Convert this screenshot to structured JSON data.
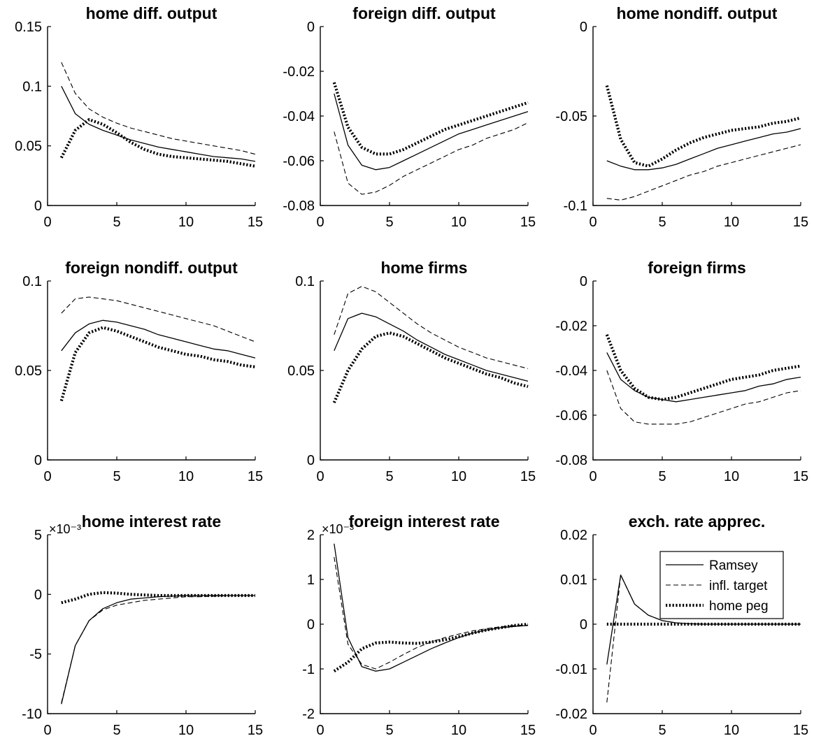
{
  "chart_data": [
    {
      "type": "line",
      "title": "home diff. output",
      "x": [
        1,
        2,
        3,
        4,
        5,
        6,
        7,
        8,
        9,
        10,
        11,
        12,
        13,
        14,
        15
      ],
      "xlim": [
        0,
        15
      ],
      "xticks": [
        0,
        5,
        10,
        15
      ],
      "xtick_labels": [
        "0",
        "5",
        "10",
        "15"
      ],
      "ylim": [
        0,
        0.15
      ],
      "yticks": [
        0,
        0.05,
        0.1,
        0.15
      ],
      "ytick_labels": [
        "0",
        "0.05",
        "0.1",
        "0.15"
      ],
      "series": [
        {
          "name": "Ramsey",
          "style": "solid",
          "values": [
            0.1,
            0.077,
            0.068,
            0.063,
            0.059,
            0.055,
            0.052,
            0.049,
            0.047,
            0.045,
            0.043,
            0.041,
            0.04,
            0.039,
            0.037
          ]
        },
        {
          "name": "infl. target",
          "style": "dashed",
          "values": [
            0.12,
            0.094,
            0.081,
            0.074,
            0.069,
            0.065,
            0.062,
            0.059,
            0.056,
            0.054,
            0.052,
            0.05,
            0.048,
            0.046,
            0.043
          ]
        },
        {
          "name": "home peg",
          "style": "dotted",
          "values": [
            0.04,
            0.063,
            0.072,
            0.068,
            0.061,
            0.053,
            0.047,
            0.043,
            0.041,
            0.04,
            0.039,
            0.038,
            0.037,
            0.035,
            0.033
          ]
        }
      ]
    },
    {
      "type": "line",
      "title": "foreign diff. output",
      "x": [
        1,
        2,
        3,
        4,
        5,
        6,
        7,
        8,
        9,
        10,
        11,
        12,
        13,
        14,
        15
      ],
      "xlim": [
        0,
        15
      ],
      "xticks": [
        0,
        5,
        10,
        15
      ],
      "xtick_labels": [
        "0",
        "5",
        "10",
        "15"
      ],
      "ylim": [
        -0.08,
        0
      ],
      "yticks": [
        -0.08,
        -0.06,
        -0.04,
        -0.02,
        0
      ],
      "ytick_labels": [
        "-0.08",
        "-0.06",
        "-0.04",
        "-0.02",
        "0"
      ],
      "series": [
        {
          "name": "Ramsey",
          "style": "solid",
          "values": [
            -0.03,
            -0.053,
            -0.062,
            -0.064,
            -0.063,
            -0.06,
            -0.057,
            -0.054,
            -0.051,
            -0.048,
            -0.046,
            -0.044,
            -0.042,
            -0.04,
            -0.038
          ]
        },
        {
          "name": "infl. target",
          "style": "dashed",
          "values": [
            -0.047,
            -0.07,
            -0.075,
            -0.074,
            -0.071,
            -0.067,
            -0.064,
            -0.061,
            -0.058,
            -0.055,
            -0.053,
            -0.05,
            -0.048,
            -0.046,
            -0.043
          ]
        },
        {
          "name": "home peg",
          "style": "dotted",
          "values": [
            -0.025,
            -0.045,
            -0.054,
            -0.057,
            -0.057,
            -0.055,
            -0.052,
            -0.049,
            -0.046,
            -0.044,
            -0.042,
            -0.04,
            -0.038,
            -0.036,
            -0.034
          ]
        }
      ]
    },
    {
      "type": "line",
      "title": "home nondiff. output",
      "x": [
        1,
        2,
        3,
        4,
        5,
        6,
        7,
        8,
        9,
        10,
        11,
        12,
        13,
        14,
        15
      ],
      "xlim": [
        0,
        15
      ],
      "xticks": [
        0,
        5,
        10,
        15
      ],
      "xtick_labels": [
        "0",
        "5",
        "10",
        "15"
      ],
      "ylim": [
        -0.1,
        0
      ],
      "yticks": [
        -0.1,
        -0.05,
        0
      ],
      "ytick_labels": [
        "-0.1",
        "-0.05",
        "0"
      ],
      "series": [
        {
          "name": "Ramsey",
          "style": "solid",
          "values": [
            -0.075,
            -0.078,
            -0.08,
            -0.08,
            -0.079,
            -0.077,
            -0.074,
            -0.071,
            -0.068,
            -0.066,
            -0.064,
            -0.062,
            -0.06,
            -0.059,
            -0.057
          ]
        },
        {
          "name": "infl. target",
          "style": "dashed",
          "values": [
            -0.096,
            -0.097,
            -0.095,
            -0.092,
            -0.089,
            -0.086,
            -0.083,
            -0.081,
            -0.078,
            -0.076,
            -0.074,
            -0.072,
            -0.07,
            -0.068,
            -0.066
          ]
        },
        {
          "name": "home peg",
          "style": "dotted",
          "values": [
            -0.033,
            -0.063,
            -0.076,
            -0.078,
            -0.074,
            -0.069,
            -0.065,
            -0.062,
            -0.06,
            -0.058,
            -0.057,
            -0.056,
            -0.054,
            -0.053,
            -0.051
          ]
        }
      ]
    },
    {
      "type": "line",
      "title": "foreign nondiff. output",
      "x": [
        1,
        2,
        3,
        4,
        5,
        6,
        7,
        8,
        9,
        10,
        11,
        12,
        13,
        14,
        15
      ],
      "xlim": [
        0,
        15
      ],
      "xticks": [
        0,
        5,
        10,
        15
      ],
      "xtick_labels": [
        "0",
        "5",
        "10",
        "15"
      ],
      "ylim": [
        0,
        0.1
      ],
      "yticks": [
        0,
        0.05,
        0.1
      ],
      "ytick_labels": [
        "0",
        "0.05",
        "0.1"
      ],
      "series": [
        {
          "name": "Ramsey",
          "style": "solid",
          "values": [
            0.061,
            0.071,
            0.076,
            0.078,
            0.077,
            0.075,
            0.073,
            0.07,
            0.068,
            0.066,
            0.064,
            0.062,
            0.061,
            0.059,
            0.057
          ]
        },
        {
          "name": "infl. target",
          "style": "dashed",
          "values": [
            0.082,
            0.09,
            0.091,
            0.09,
            0.089,
            0.087,
            0.085,
            0.083,
            0.081,
            0.079,
            0.077,
            0.075,
            0.072,
            0.069,
            0.066
          ]
        },
        {
          "name": "home peg",
          "style": "dotted",
          "values": [
            0.033,
            0.06,
            0.071,
            0.074,
            0.072,
            0.069,
            0.066,
            0.063,
            0.061,
            0.059,
            0.058,
            0.056,
            0.055,
            0.053,
            0.052
          ]
        }
      ]
    },
    {
      "type": "line",
      "title": "home firms",
      "x": [
        1,
        2,
        3,
        4,
        5,
        6,
        7,
        8,
        9,
        10,
        11,
        12,
        13,
        14,
        15
      ],
      "xlim": [
        0,
        15
      ],
      "xticks": [
        0,
        5,
        10,
        15
      ],
      "xtick_labels": [
        "0",
        "5",
        "10",
        "15"
      ],
      "ylim": [
        0,
        0.1
      ],
      "yticks": [
        0,
        0.05,
        0.1
      ],
      "ytick_labels": [
        "0",
        "0.05",
        "0.1"
      ],
      "series": [
        {
          "name": "Ramsey",
          "style": "solid",
          "values": [
            0.061,
            0.079,
            0.082,
            0.08,
            0.076,
            0.072,
            0.067,
            0.063,
            0.059,
            0.056,
            0.053,
            0.05,
            0.048,
            0.046,
            0.044
          ]
        },
        {
          "name": "infl. target",
          "style": "dashed",
          "values": [
            0.07,
            0.093,
            0.097,
            0.094,
            0.088,
            0.082,
            0.076,
            0.071,
            0.067,
            0.063,
            0.06,
            0.057,
            0.055,
            0.053,
            0.051
          ]
        },
        {
          "name": "home peg",
          "style": "dotted",
          "values": [
            0.032,
            0.05,
            0.062,
            0.069,
            0.071,
            0.069,
            0.065,
            0.061,
            0.057,
            0.054,
            0.051,
            0.048,
            0.046,
            0.043,
            0.041
          ]
        }
      ]
    },
    {
      "type": "line",
      "title": "foreign firms",
      "x": [
        1,
        2,
        3,
        4,
        5,
        6,
        7,
        8,
        9,
        10,
        11,
        12,
        13,
        14,
        15
      ],
      "xlim": [
        0,
        15
      ],
      "xticks": [
        0,
        5,
        10,
        15
      ],
      "xtick_labels": [
        "0",
        "5",
        "10",
        "15"
      ],
      "ylim": [
        -0.08,
        0
      ],
      "yticks": [
        -0.08,
        -0.06,
        -0.04,
        -0.02,
        0
      ],
      "ytick_labels": [
        "-0.08",
        "-0.06",
        "-0.04",
        "-0.02",
        "0"
      ],
      "series": [
        {
          "name": "Ramsey",
          "style": "solid",
          "values": [
            -0.032,
            -0.044,
            -0.049,
            -0.052,
            -0.053,
            -0.054,
            -0.053,
            -0.052,
            -0.051,
            -0.05,
            -0.049,
            -0.047,
            -0.046,
            -0.044,
            -0.043
          ]
        },
        {
          "name": "infl. target",
          "style": "dashed",
          "values": [
            -0.04,
            -0.057,
            -0.063,
            -0.064,
            -0.064,
            -0.064,
            -0.063,
            -0.061,
            -0.059,
            -0.057,
            -0.055,
            -0.054,
            -0.052,
            -0.05,
            -0.049
          ]
        },
        {
          "name": "home peg",
          "style": "dotted",
          "values": [
            -0.024,
            -0.04,
            -0.048,
            -0.052,
            -0.053,
            -0.052,
            -0.05,
            -0.048,
            -0.046,
            -0.044,
            -0.043,
            -0.042,
            -0.04,
            -0.039,
            -0.038
          ]
        }
      ]
    },
    {
      "type": "line",
      "title": "home interest rate",
      "exponent_label": "×10⁻³",
      "x": [
        1,
        2,
        3,
        4,
        5,
        6,
        7,
        8,
        9,
        10,
        11,
        12,
        13,
        14,
        15
      ],
      "xlim": [
        0,
        15
      ],
      "xticks": [
        0,
        5,
        10,
        15
      ],
      "xtick_labels": [
        "0",
        "5",
        "10",
        "15"
      ],
      "ylim": [
        -10,
        5
      ],
      "yticks": [
        -10,
        -5,
        0,
        5
      ],
      "ytick_labels": [
        "-10",
        "-5",
        "0",
        "5"
      ],
      "series": [
        {
          "name": "Ramsey",
          "style": "solid",
          "values": [
            -9.2,
            -4.3,
            -2.2,
            -1.2,
            -0.7,
            -0.4,
            -0.3,
            -0.2,
            -0.15,
            -0.1,
            -0.1,
            -0.1,
            -0.1,
            -0.1,
            -0.1
          ]
        },
        {
          "name": "infl. target",
          "style": "dashed",
          "values": [
            -9.1,
            -4.3,
            -2.2,
            -1.3,
            -0.9,
            -0.7,
            -0.5,
            -0.4,
            -0.3,
            -0.2,
            -0.2,
            -0.15,
            -0.1,
            -0.1,
            -0.1
          ]
        },
        {
          "name": "home peg",
          "style": "dotted",
          "values": [
            -0.7,
            -0.4,
            0.0,
            0.15,
            0.1,
            0.0,
            -0.05,
            -0.1,
            -0.1,
            -0.1,
            -0.1,
            -0.1,
            -0.1,
            -0.1,
            -0.1
          ]
        }
      ]
    },
    {
      "type": "line",
      "title": "foreign interest rate",
      "exponent_label": "×10⁻³",
      "x": [
        1,
        2,
        3,
        4,
        5,
        6,
        7,
        8,
        9,
        10,
        11,
        12,
        13,
        14,
        15
      ],
      "xlim": [
        0,
        15
      ],
      "xticks": [
        0,
        5,
        10,
        15
      ],
      "xtick_labels": [
        "0",
        "5",
        "10",
        "15"
      ],
      "ylim": [
        -2,
        2
      ],
      "yticks": [
        -2,
        -1,
        0,
        1,
        2
      ],
      "ytick_labels": [
        "-2",
        "-1",
        "0",
        "1",
        "2"
      ],
      "series": [
        {
          "name": "Ramsey",
          "style": "solid",
          "values": [
            1.8,
            -0.3,
            -0.95,
            -1.05,
            -1.0,
            -0.85,
            -0.7,
            -0.55,
            -0.42,
            -0.3,
            -0.2,
            -0.13,
            -0.08,
            -0.05,
            -0.03
          ]
        },
        {
          "name": "infl. target",
          "style": "dashed",
          "values": [
            1.5,
            -0.45,
            -0.9,
            -1.0,
            -0.85,
            -0.68,
            -0.52,
            -0.4,
            -0.3,
            -0.22,
            -0.15,
            -0.1,
            -0.06,
            -0.03,
            -0.02
          ]
        },
        {
          "name": "home peg",
          "style": "dotted",
          "values": [
            -1.05,
            -0.85,
            -0.55,
            -0.42,
            -0.4,
            -0.42,
            -0.43,
            -0.4,
            -0.35,
            -0.28,
            -0.2,
            -0.13,
            -0.08,
            -0.03,
            0.0
          ]
        }
      ]
    },
    {
      "type": "line",
      "title": "exch. rate apprec.",
      "x": [
        1,
        2,
        3,
        4,
        5,
        6,
        7,
        8,
        9,
        10,
        11,
        12,
        13,
        14,
        15
      ],
      "xlim": [
        0,
        15
      ],
      "xticks": [
        0,
        5,
        10,
        15
      ],
      "xtick_labels": [
        "0",
        "5",
        "10",
        "15"
      ],
      "ylim": [
        -0.02,
        0.02
      ],
      "yticks": [
        -0.02,
        -0.01,
        0,
        0.01,
        0.02
      ],
      "ytick_labels": [
        "-0.02",
        "-0.01",
        "0",
        "0.01",
        "0.02"
      ],
      "legend": {
        "position": "top-right",
        "entries": [
          "Ramsey",
          "infl. target",
          "home peg"
        ]
      },
      "series": [
        {
          "name": "Ramsey",
          "style": "solid",
          "values": [
            -0.009,
            0.011,
            0.0045,
            0.002,
            0.0008,
            0.0003,
            0.0001,
            0.0,
            0.0,
            0.0,
            0.0,
            0.0,
            0.0,
            0.0,
            0.0
          ]
        },
        {
          "name": "infl. target",
          "style": "dashed",
          "values": [
            -0.0175,
            0.011,
            0.0045,
            0.002,
            0.0008,
            0.0003,
            0.0001,
            0.0,
            0.0,
            0.0,
            0.0,
            0.0,
            0.0,
            0.0,
            0.0
          ]
        },
        {
          "name": "home peg",
          "style": "dotted",
          "values": [
            0.0,
            0.0,
            0.0,
            0.0,
            0.0,
            0.0,
            0.0,
            0.0,
            0.0,
            0.0,
            0.0,
            0.0,
            0.0,
            0.0,
            0.0
          ]
        }
      ]
    }
  ]
}
